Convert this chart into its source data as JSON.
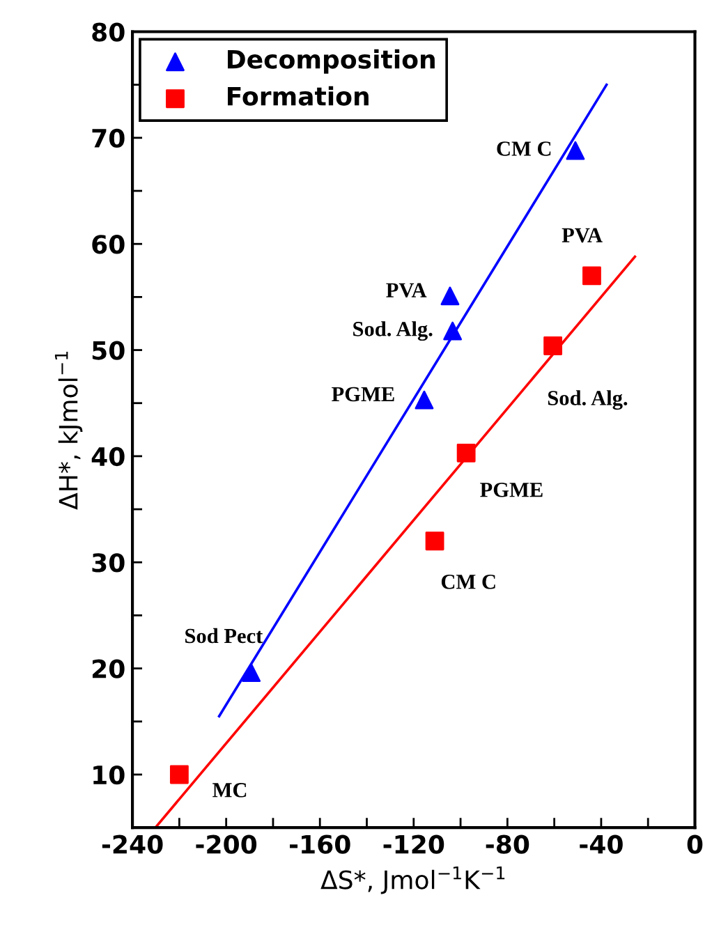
{
  "chart_data": {
    "type": "scatter",
    "xlabel": "ΔS*, Jmol$^{−1}$K$^{ −1}$",
    "ylabel": "ΔH*, kJmol$^{−1}$",
    "xlim": [
      -240,
      0
    ],
    "ylim": [
      5,
      80
    ],
    "xticks": [
      -240,
      {
        "value": -220,
        "label": null
      },
      -200,
      {
        "value": -180,
        "label": null
      },
      -160,
      {
        "value": -140,
        "label": null
      },
      -120,
      {
        "value": -100,
        "label": null
      },
      -80,
      {
        "value": -60,
        "label": null
      },
      -40,
      {
        "value": -20,
        "label": null
      },
      0
    ],
    "yticks": [
      {
        "value": 5,
        "label": null
      },
      10,
      {
        "value": 15,
        "label": null
      },
      20,
      {
        "value": 25,
        "label": null
      },
      30,
      {
        "value": 35,
        "label": null
      },
      40,
      {
        "value": 45,
        "label": null
      },
      50,
      {
        "value": 55,
        "label": null
      },
      60,
      {
        "value": 65,
        "label": null
      },
      70,
      {
        "value": 75,
        "label": null
      },
      80
    ],
    "grid": false,
    "legend": "top left",
    "series": [
      {
        "name": "Decomposition",
        "color": "#0000ff",
        "marker": "triangle",
        "x": [
          -51,
          -104.5,
          -103.4,
          -115.5,
          -189.3
        ],
        "values": [
          68.8,
          55.1,
          51.8,
          45.3,
          19.6
        ]
      },
      {
        "name": "Formation",
        "color": "#ff0000",
        "marker": "square",
        "x": [
          -44,
          -60.6,
          -97.6,
          -111,
          -220
        ],
        "values": [
          57,
          50.4,
          40.3,
          32,
          10
        ]
      },
      {
        "type": "line",
        "color": "#0000ff",
        "x": [
          -203,
          -37.7
        ],
        "values": [
          15.5,
          75
        ]
      },
      {
        "type": "line",
        "color": "#ff0000",
        "x": [
          -230.2,
          -25.6
        ],
        "values": [
          5,
          58.8
        ]
      }
    ],
    "annotations": [
      {
        "text": "CM C",
        "x": -51,
        "y": 68.8
      },
      {
        "text": "PVA",
        "x": -104.5,
        "y": 55.1
      },
      {
        "text": "Sod. Alg.",
        "x": -103.4,
        "y": 51.8
      },
      {
        "text": "PGME",
        "x": -115.5,
        "y": 45.3
      },
      {
        "text": "Sod Pect",
        "x": -189.3,
        "y": 19.6
      },
      {
        "text": "PVA",
        "x": -44,
        "y": 57
      },
      {
        "text": "Sod. Alg.",
        "x": -60.6,
        "y": 50.4
      },
      {
        "text": "PGME",
        "x": -97.6,
        "y": 40.3
      },
      {
        "text": "CM C",
        "x": -111,
        "y": 32
      },
      {
        "text": "MC",
        "x": -220,
        "y": 10
      }
    ]
  }
}
